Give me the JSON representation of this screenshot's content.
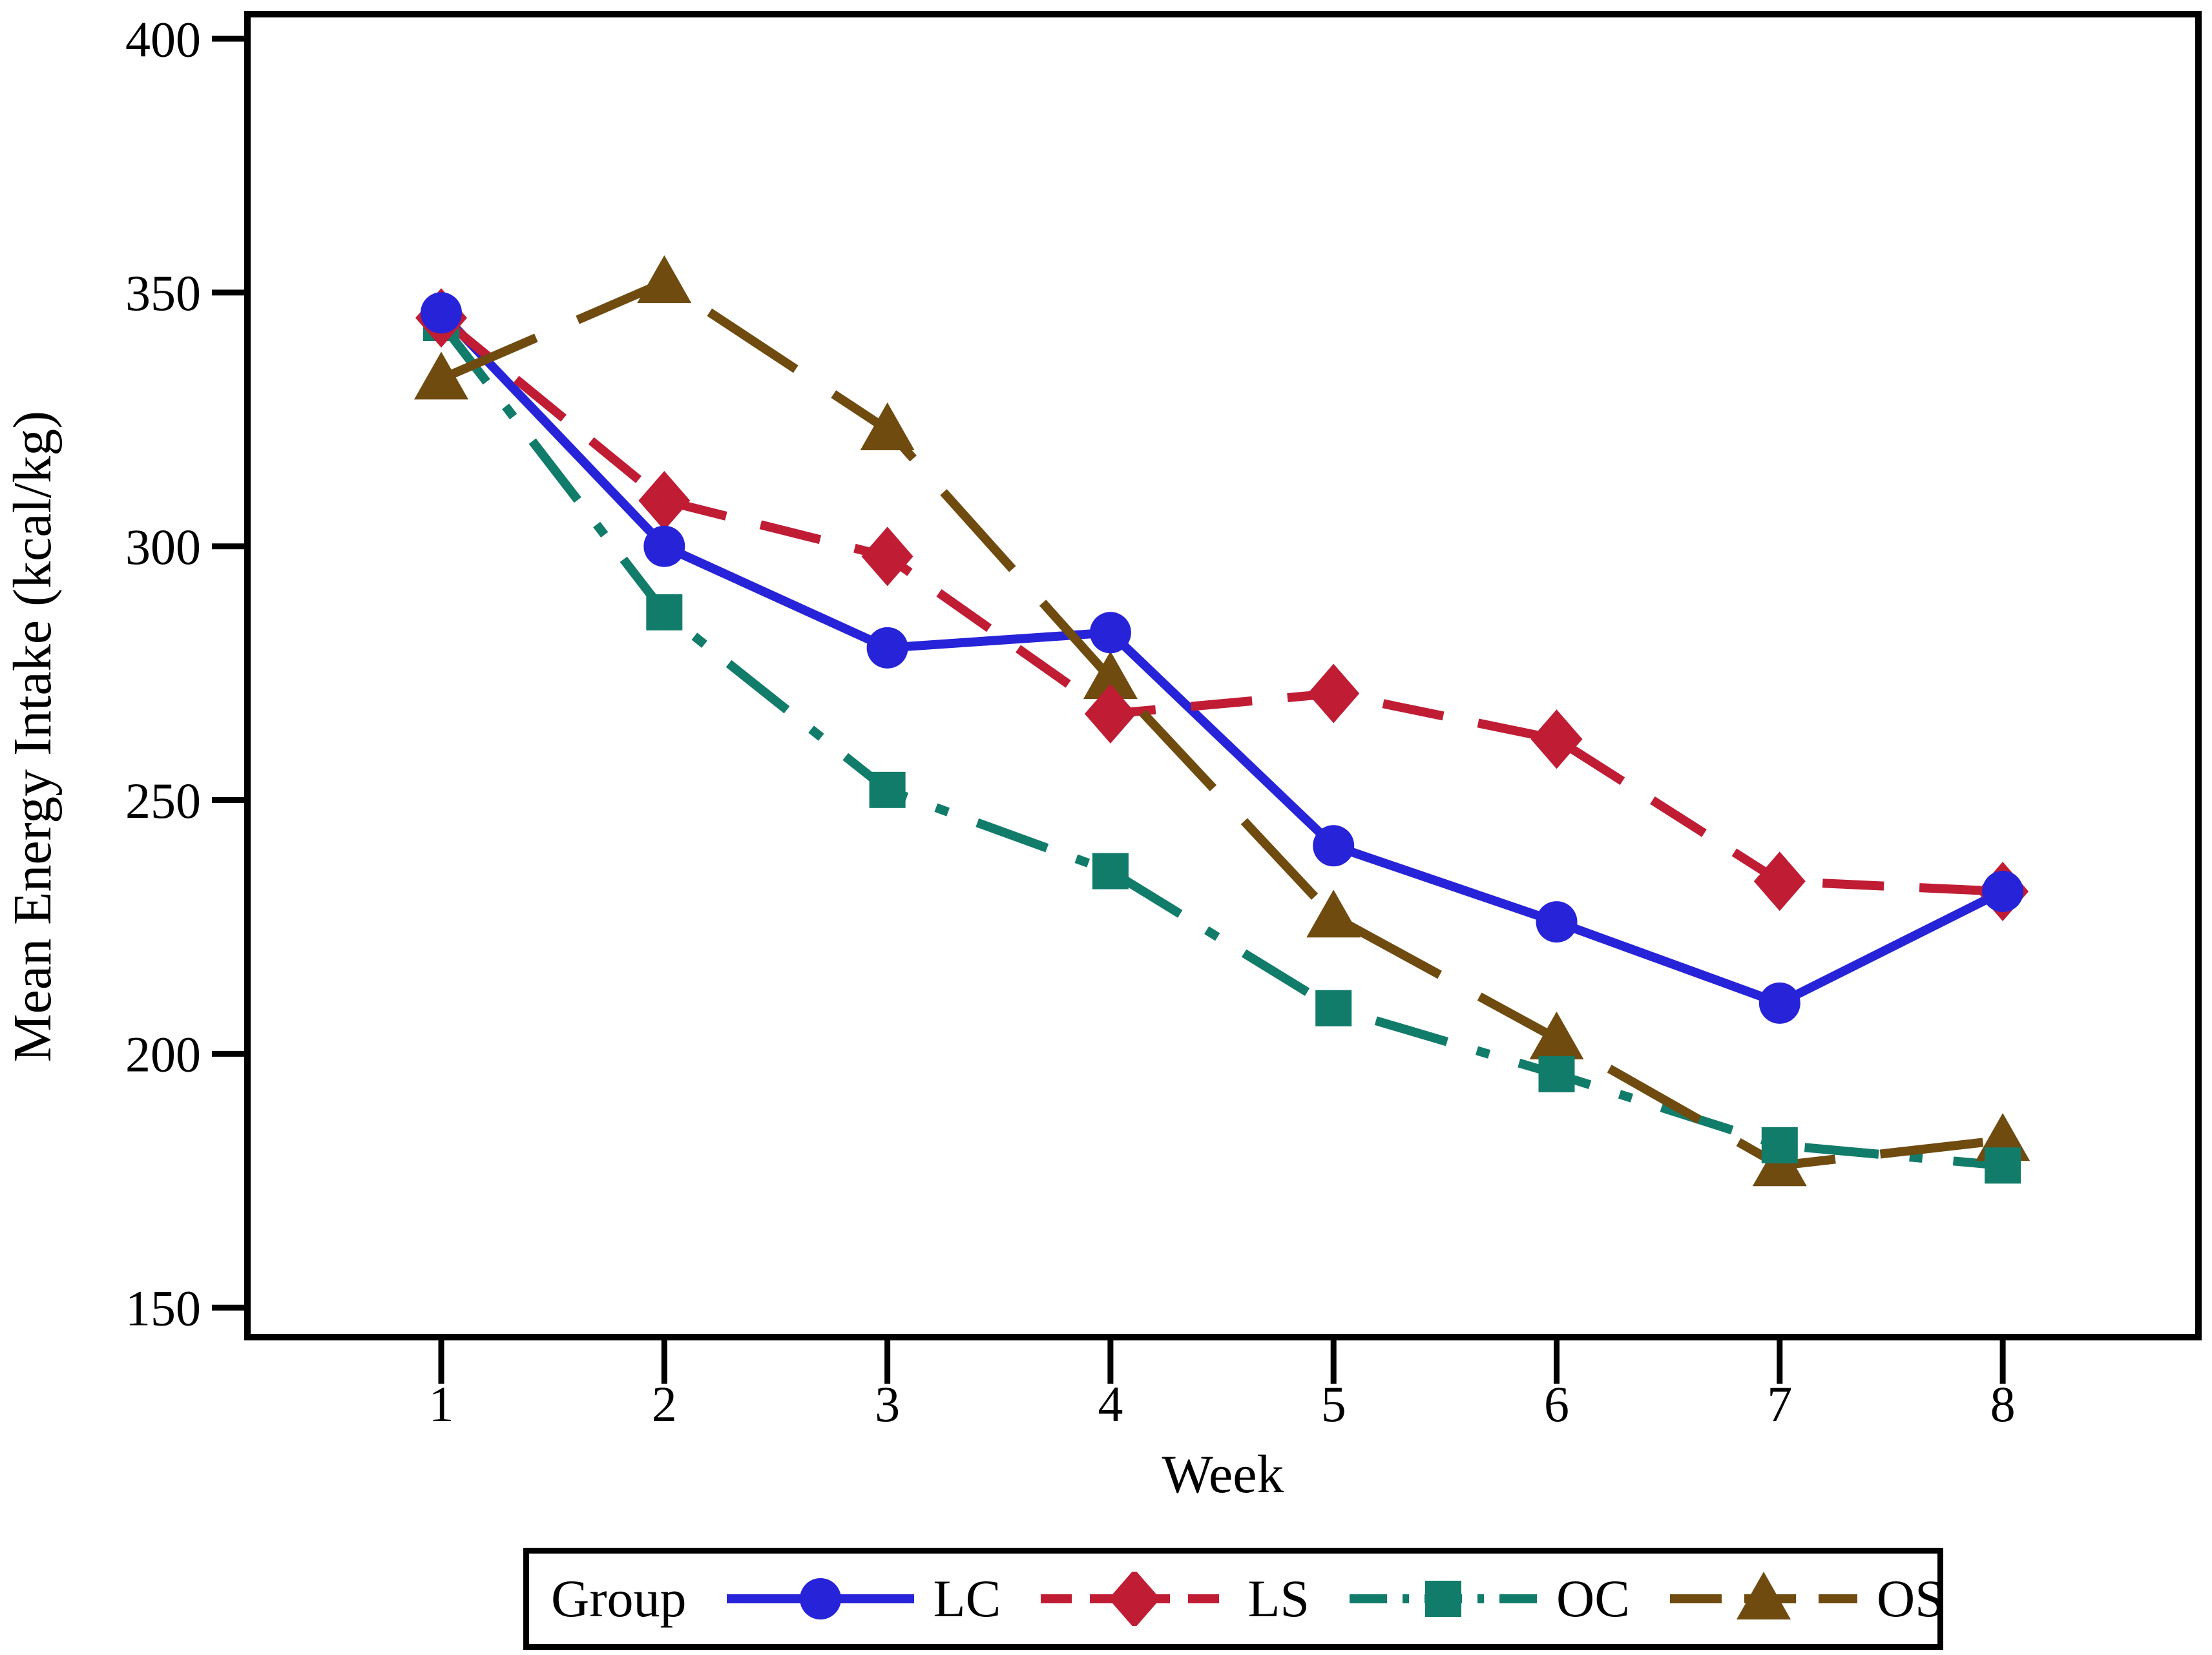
{
  "figure": {
    "background": "#ffffff",
    "frame_color": "#000000",
    "text_color": "#000000"
  },
  "chart_data": {
    "type": "line",
    "title": "",
    "xlabel": "Week",
    "ylabel": "Mean Energy Intake (kcal/kg)",
    "x": [
      1,
      2,
      3,
      4,
      5,
      6,
      7,
      8
    ],
    "xtick_labels": [
      "1",
      "2",
      "3",
      "4",
      "5",
      "6",
      "7",
      "8"
    ],
    "yticks": [
      400,
      350,
      300,
      250,
      200,
      150
    ],
    "ylim": [
      150,
      400
    ],
    "grid": false,
    "legend": {
      "title": "Group",
      "position": "bottom",
      "entries": [
        "LC",
        "LS",
        "OC",
        "OS"
      ]
    },
    "series": [
      {
        "name": "LC",
        "label": "LC",
        "color": "#2723d8",
        "line_style": "solid",
        "marker": "circle",
        "values": [
          346,
          300,
          280,
          283,
          241,
          226,
          210,
          232
        ]
      },
      {
        "name": "LS",
        "label": "LS",
        "color": "#c01d35",
        "line_style": "dashed",
        "marker": "diamond",
        "values": [
          345,
          309,
          298,
          267,
          271,
          262,
          234,
          232
        ]
      },
      {
        "name": "OC",
        "label": "OC",
        "color": "#127c6b",
        "line_style": "dash-dot",
        "marker": "square",
        "values": [
          344,
          287,
          252,
          236,
          209,
          196,
          182,
          178
        ]
      },
      {
        "name": "OS",
        "label": "OS",
        "color": "#6f4b10",
        "line_style": "long-dash",
        "marker": "triangle",
        "values": [
          333,
          352,
          323,
          274,
          227,
          203,
          178,
          183
        ]
      }
    ]
  }
}
